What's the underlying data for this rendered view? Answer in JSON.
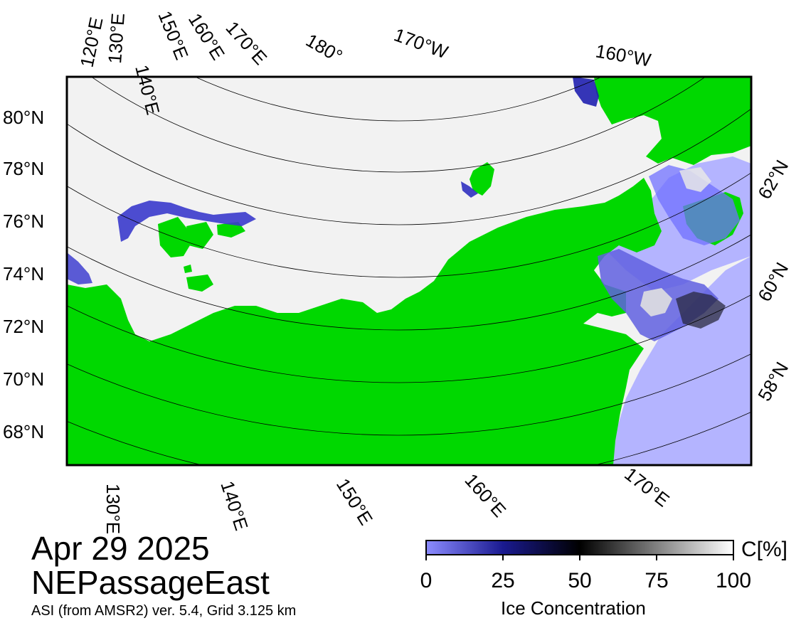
{
  "map": {
    "date": "Apr 29 2025",
    "region": "NEPassageEast",
    "source": "ASI (from AMSR2) ver. 5.4,  Grid 3.125 km",
    "top_lon_labels": [
      "120°E",
      "130°E",
      "140°E",
      "150°E",
      "160°E",
      "170°E",
      "180°",
      "170°W",
      "160°W"
    ],
    "left_lat_labels": [
      "80°N",
      "78°N",
      "76°N",
      "74°N",
      "72°N",
      "70°N",
      "68°N"
    ],
    "right_lat_labels": [
      "62°N",
      "60°N",
      "58°N"
    ],
    "bottom_lon_labels": [
      "130°E",
      "140°E",
      "150°E",
      "160°E",
      "170°E"
    ],
    "colors": {
      "land": "#00d800",
      "open_water": "#b4b4ff",
      "ice_high": "#ffffff",
      "ice_mid": "#000000",
      "ice_low": "#0000a0"
    }
  },
  "colorbar": {
    "title": "Ice Concentration",
    "unit": "C[%]",
    "ticks": [
      "0",
      "25",
      "50",
      "75",
      "100"
    ],
    "range": [
      0,
      100
    ]
  }
}
